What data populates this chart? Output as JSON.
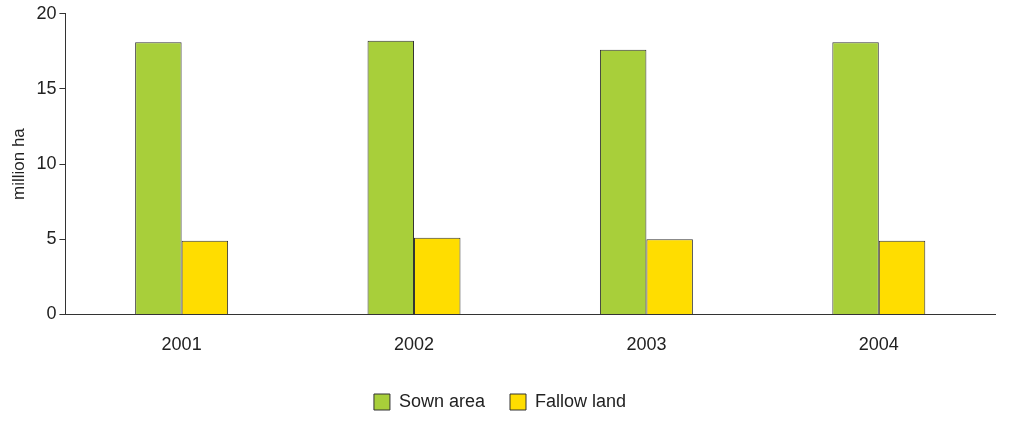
{
  "chart_data": {
    "type": "bar",
    "ylabel": "million ha",
    "categories": [
      "2001",
      "2002",
      "2003",
      "2004"
    ],
    "series": [
      {
        "name": "Sown area",
        "color": "#a8cf3a",
        "values": [
          18.1,
          18.2,
          17.6,
          18.1
        ]
      },
      {
        "name": "Fallow land",
        "color": "#ffdd00",
        "values": [
          4.9,
          5.1,
          5.0,
          4.9
        ]
      }
    ],
    "ylim": [
      0,
      20
    ],
    "yticks": [
      0,
      5,
      10,
      15,
      20
    ],
    "grid": false,
    "legend": "bottom"
  }
}
